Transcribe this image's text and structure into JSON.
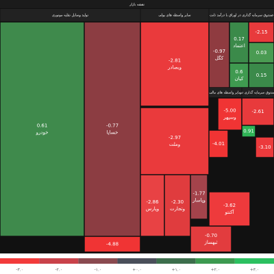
{
  "title": "نقشه بازار",
  "sectors": [
    "تولید وسایل نقلیه موتوری",
    "سایر واسطه های پولی",
    "صندوق سرمایه گذاری در اوراق با درآمد ثابت",
    "سایر واسطه های مالی",
    "صندوق سرمایه گذاری در"
  ],
  "tiles": [
    {
      "name": "خودرو",
      "change": "0.61",
      "color": "#3f8a4c"
    },
    {
      "name": "خساپا",
      "change": "-0.77",
      "color": "#8c3d42"
    },
    {
      "change": "-4.88",
      "color": "#f03434"
    },
    {
      "name": "وبصادر",
      "change": "-2.81",
      "color": "#ea3a3c"
    },
    {
      "name": "وملت",
      "change": "-2.97",
      "color": "#ea3a3c"
    },
    {
      "name": "وپارس",
      "change": "-2.86",
      "color": "#e84244"
    },
    {
      "name": "وتجارت",
      "change": "-2.30",
      "color": "#e03c3e"
    },
    {
      "name": "وپاسار",
      "change": "-1.77",
      "color": "#a4434b"
    },
    {
      "name": "کگل",
      "change": "-0.97",
      "color": "#8f3b40"
    },
    {
      "name": "اعتماد",
      "change": "0.17",
      "color": "#3b8a4a"
    },
    {
      "change": "-2.15",
      "color": "#e83a3c"
    },
    {
      "change": "0.03",
      "color": "#4a9b52"
    },
    {
      "name": "کیان",
      "change": "0.6",
      "color": "#3f9a50"
    },
    {
      "change": "0.15",
      "color": "#3b8a4a"
    },
    {
      "name": "وسپهر",
      "change": "-5.00",
      "color": "#f03434"
    },
    {
      "name": "آکنتو",
      "change": "-3.62",
      "color": "#ee3a3c"
    },
    {
      "name": "ثبهساز",
      "change": "-0.70",
      "color": "#e23c3e"
    },
    {
      "change": "-2.61",
      "color": "#e83a3c"
    },
    {
      "change": "-4.01",
      "color": "#f03434"
    },
    {
      "change": "0.91",
      "color": "#2fb356"
    },
    {
      "change": "-3.10",
      "color": "#ec3a3c"
    }
  ],
  "legend": [
    {
      "label": "-۳.۰",
      "color": "#f23b3b"
    },
    {
      "label": "-۲.۰",
      "color": "#c9424a"
    },
    {
      "label": "-۱.۰",
      "color": "#8a4a50"
    },
    {
      "label": "+۰.۰",
      "color": "#4a4f5a"
    },
    {
      "label": "+۱.۰",
      "color": "#3c6e4c"
    },
    {
      "label": "+۲.۰",
      "color": "#3c9a50"
    },
    {
      "label": "+۳.۰",
      "color": "#2cc060"
    }
  ]
}
